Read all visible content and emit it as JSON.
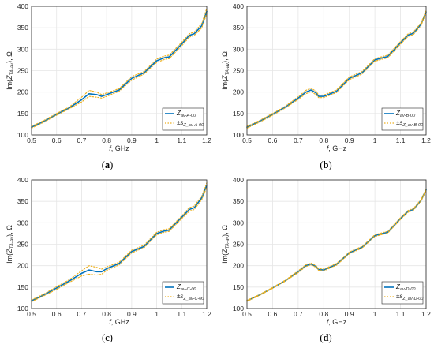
{
  "chart_data": [
    {
      "type": "line",
      "caption": "(a)",
      "xlabel": "f, GHz",
      "ylabel": "Im(Z_TA-av), Ω",
      "xlim": [
        0.5,
        1.2
      ],
      "ylim": [
        100,
        400
      ],
      "xticks": [
        "0.5",
        "0.6",
        "0.7",
        "0.8",
        "0.9",
        "1",
        "1.1",
        "1.2"
      ],
      "yticks": [
        "100",
        "150",
        "200",
        "250",
        "300",
        "350",
        "400"
      ],
      "grid": true,
      "legend_position": "bottom-right",
      "series": [
        {
          "name": "Z_av-A-00",
          "style": "solid",
          "color": "#0072BD",
          "x": [
            0.5,
            0.55,
            0.6,
            0.65,
            0.7,
            0.73,
            0.76,
            0.78,
            0.8,
            0.85,
            0.9,
            0.95,
            1.0,
            1.03,
            1.05,
            1.1,
            1.13,
            1.15,
            1.18,
            1.2
          ],
          "y": [
            118,
            132,
            148,
            163,
            182,
            196,
            194,
            190,
            194,
            205,
            232,
            245,
            273,
            280,
            282,
            312,
            332,
            336,
            355,
            388
          ]
        },
        {
          "name": "±s_Z_av-A-00",
          "style": "dotted",
          "color": "#EDB120",
          "x": [
            0.5,
            0.55,
            0.6,
            0.65,
            0.7,
            0.73,
            0.76,
            0.78,
            0.8,
            0.85,
            0.9,
            0.95,
            1.0,
            1.03,
            1.05,
            1.1,
            1.13,
            1.15,
            1.18,
            1.2
          ],
          "y": [
            120,
            134,
            150,
            165,
            188,
            204,
            200,
            194,
            198,
            208,
            236,
            248,
            277,
            284,
            286,
            316,
            336,
            340,
            360,
            395
          ]
        },
        {
          "name": "",
          "style": "dotted",
          "color": "#EDB120",
          "x": [
            0.5,
            0.55,
            0.6,
            0.65,
            0.7,
            0.73,
            0.76,
            0.78,
            0.8,
            0.85,
            0.9,
            0.95,
            1.0,
            1.03,
            1.05,
            1.1,
            1.13,
            1.15,
            1.18,
            1.2
          ],
          "y": [
            116,
            130,
            146,
            161,
            177,
            190,
            188,
            186,
            190,
            202,
            228,
            242,
            269,
            276,
            278,
            308,
            328,
            332,
            350,
            383
          ]
        }
      ]
    },
    {
      "type": "line",
      "caption": "(b)",
      "xlabel": "f, GHz",
      "ylabel": "Im(Z_TA-av), Ω",
      "xlim": [
        0.5,
        1.2
      ],
      "ylim": [
        100,
        400
      ],
      "xticks": [
        "0.5",
        "0.6",
        "0.7",
        "0.8",
        "0.9",
        "1",
        "1.1",
        "1.2"
      ],
      "yticks": [
        "100",
        "150",
        "200",
        "250",
        "300",
        "350",
        "400"
      ],
      "grid": true,
      "legend_position": "bottom-right",
      "series": [
        {
          "name": "Z_av-B-00",
          "style": "solid",
          "color": "#0072BD",
          "x": [
            0.5,
            0.55,
            0.6,
            0.65,
            0.7,
            0.73,
            0.75,
            0.77,
            0.78,
            0.8,
            0.85,
            0.9,
            0.95,
            1.0,
            1.03,
            1.05,
            1.1,
            1.13,
            1.15,
            1.18,
            1.2
          ],
          "y": [
            118,
            132,
            148,
            165,
            186,
            200,
            205,
            198,
            190,
            190,
            202,
            232,
            245,
            275,
            280,
            283,
            315,
            333,
            337,
            358,
            387
          ]
        },
        {
          "name": "±s_Z_av-B-00",
          "style": "dotted",
          "color": "#EDB120",
          "x": [
            0.5,
            0.55,
            0.6,
            0.65,
            0.7,
            0.73,
            0.75,
            0.77,
            0.78,
            0.8,
            0.85,
            0.9,
            0.95,
            1.0,
            1.03,
            1.05,
            1.1,
            1.13,
            1.15,
            1.18,
            1.2
          ],
          "y": [
            120,
            134,
            150,
            167,
            189,
            204,
            209,
            202,
            193,
            193,
            205,
            235,
            248,
            278,
            283,
            286,
            318,
            336,
            340,
            361,
            390
          ]
        },
        {
          "name": "",
          "style": "dotted",
          "color": "#EDB120",
          "x": [
            0.5,
            0.55,
            0.6,
            0.65,
            0.7,
            0.73,
            0.75,
            0.77,
            0.78,
            0.8,
            0.85,
            0.9,
            0.95,
            1.0,
            1.03,
            1.05,
            1.1,
            1.13,
            1.15,
            1.18,
            1.2
          ],
          "y": [
            116,
            130,
            146,
            163,
            183,
            196,
            201,
            194,
            187,
            187,
            199,
            229,
            242,
            272,
            277,
            280,
            312,
            330,
            334,
            355,
            384
          ]
        }
      ]
    },
    {
      "type": "line",
      "caption": "(c)",
      "xlabel": "f, GHz",
      "ylabel": "Im(Z_TA-av), Ω",
      "xlim": [
        0.5,
        1.2
      ],
      "ylim": [
        100,
        400
      ],
      "xticks": [
        "0.5",
        "0.6",
        "0.7",
        "0.8",
        "0.9",
        "1",
        "1.1",
        "1.2"
      ],
      "yticks": [
        "100",
        "150",
        "200",
        "250",
        "300",
        "350",
        "400"
      ],
      "grid": true,
      "legend_position": "bottom-right",
      "series": [
        {
          "name": "Z_av-C-00",
          "style": "solid",
          "color": "#0072BD",
          "x": [
            0.5,
            0.55,
            0.6,
            0.65,
            0.7,
            0.73,
            0.76,
            0.78,
            0.8,
            0.85,
            0.9,
            0.95,
            1.0,
            1.03,
            1.05,
            1.1,
            1.13,
            1.15,
            1.18,
            1.2
          ],
          "y": [
            118,
            132,
            148,
            164,
            182,
            190,
            186,
            186,
            193,
            205,
            233,
            245,
            275,
            281,
            283,
            313,
            331,
            335,
            358,
            388
          ]
        },
        {
          "name": "±s_Z_av-C-00",
          "style": "dotted",
          "color": "#EDB120",
          "x": [
            0.5,
            0.55,
            0.6,
            0.65,
            0.7,
            0.73,
            0.76,
            0.78,
            0.8,
            0.85,
            0.9,
            0.95,
            1.0,
            1.03,
            1.05,
            1.1,
            1.13,
            1.15,
            1.18,
            1.2
          ],
          "y": [
            120,
            134,
            151,
            167,
            188,
            200,
            196,
            192,
            197,
            208,
            236,
            248,
            278,
            284,
            286,
            316,
            335,
            339,
            362,
            393
          ]
        },
        {
          "name": "",
          "style": "dotted",
          "color": "#EDB120",
          "x": [
            0.5,
            0.55,
            0.6,
            0.65,
            0.7,
            0.73,
            0.76,
            0.78,
            0.8,
            0.85,
            0.9,
            0.95,
            1.0,
            1.03,
            1.05,
            1.1,
            1.13,
            1.15,
            1.18,
            1.2
          ],
          "y": [
            116,
            130,
            145,
            161,
            176,
            180,
            178,
            180,
            189,
            202,
            230,
            242,
            272,
            278,
            280,
            310,
            327,
            331,
            354,
            383
          ]
        }
      ]
    },
    {
      "type": "line",
      "caption": "(d)",
      "xlabel": "f, GHz",
      "ylabel": "Im(Z_TA-av), Ω",
      "xlim": [
        0.5,
        1.2
      ],
      "ylim": [
        100,
        400
      ],
      "xticks": [
        "0.5",
        "0.6",
        "0.7",
        "0.8",
        "0.9",
        "1",
        "1.1",
        "1.2"
      ],
      "yticks": [
        "100",
        "150",
        "200",
        "250",
        "300",
        "350",
        "400"
      ],
      "grid": true,
      "legend_position": "bottom-right",
      "series": [
        {
          "name": "Z_av-D-00",
          "style": "solid",
          "color": "#0072BD",
          "x": [
            0.5,
            0.55,
            0.6,
            0.65,
            0.7,
            0.73,
            0.75,
            0.77,
            0.78,
            0.8,
            0.85,
            0.9,
            0.95,
            1.0,
            1.03,
            1.05,
            1.1,
            1.13,
            1.15,
            1.18,
            1.2
          ],
          "y": [
            118,
            132,
            148,
            165,
            186,
            200,
            204,
            198,
            191,
            190,
            203,
            230,
            243,
            270,
            275,
            278,
            310,
            327,
            331,
            352,
            377
          ]
        },
        {
          "name": "±s_Z_av-D-00",
          "style": "dotted",
          "color": "#EDB120",
          "x": [
            0.5,
            0.55,
            0.6,
            0.65,
            0.7,
            0.73,
            0.75,
            0.77,
            0.78,
            0.8,
            0.85,
            0.9,
            0.95,
            1.0,
            1.03,
            1.05,
            1.1,
            1.13,
            1.15,
            1.18,
            1.2
          ],
          "y": [
            119,
            133,
            149,
            166,
            188,
            202,
            206,
            200,
            193,
            192,
            205,
            232,
            245,
            272,
            277,
            280,
            312,
            329,
            333,
            354,
            379
          ]
        },
        {
          "name": "",
          "style": "dotted",
          "color": "#EDB120",
          "x": [
            0.5,
            0.55,
            0.6,
            0.65,
            0.7,
            0.73,
            0.75,
            0.77,
            0.78,
            0.8,
            0.85,
            0.9,
            0.95,
            1.0,
            1.03,
            1.05,
            1.1,
            1.13,
            1.15,
            1.18,
            1.2
          ],
          "y": [
            117,
            131,
            147,
            164,
            184,
            198,
            202,
            196,
            189,
            188,
            201,
            228,
            241,
            268,
            273,
            276,
            308,
            325,
            329,
            350,
            375
          ]
        }
      ]
    }
  ]
}
